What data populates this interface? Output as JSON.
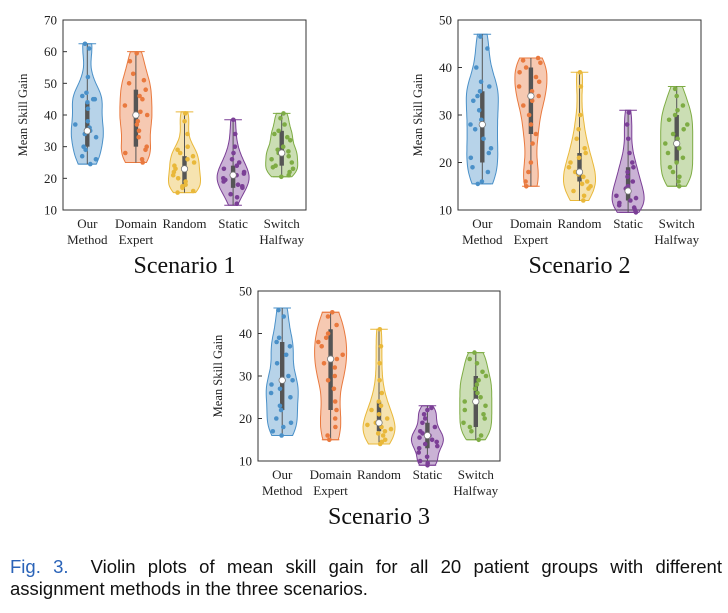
{
  "caption": {
    "label": "Fig. 3.",
    "text": "Violin plots of mean skill gain for all 20 patient groups with different assignment methods in the three scenarios."
  },
  "colors": {
    "Our Method": "#4a90c8",
    "Domain Expert": "#e9793e",
    "Random": "#e9b83a",
    "Static": "#7b3f96",
    "Switch Halfway": "#7eac44"
  },
  "chart_data": [
    {
      "type": "violin",
      "title": "Scenario 1",
      "ylabel": "Mean Skill Gain",
      "ylim": [
        10,
        70
      ],
      "yticks": [
        10,
        20,
        30,
        40,
        50,
        60,
        70
      ],
      "category_labels": [
        [
          "Our",
          "Method"
        ],
        [
          "Domain",
          "Expert"
        ],
        [
          "Random"
        ],
        [
          "Static"
        ],
        [
          "Switch",
          "Halfway"
        ]
      ],
      "series": [
        {
          "name": "Our Method",
          "min": 24.5,
          "q1": 30,
          "median": 35,
          "q3": 44,
          "max": 62.5,
          "points": [
            62.5,
            61,
            52,
            47,
            46,
            45,
            45,
            44,
            42,
            38,
            37,
            36,
            35,
            34,
            33,
            30,
            29,
            27,
            26,
            24.5
          ]
        },
        {
          "name": "Domain Expert",
          "min": 25,
          "q1": 30,
          "median": 40,
          "q3": 48,
          "max": 60,
          "points": [
            59.5,
            57,
            53,
            51,
            50,
            48,
            46,
            45,
            43,
            41,
            40,
            38,
            37,
            35,
            33,
            30,
            29,
            28,
            26,
            25
          ]
        },
        {
          "name": "Random",
          "min": 15.5,
          "q1": 18,
          "median": 23,
          "q3": 27,
          "max": 41,
          "points": [
            40.5,
            38,
            34,
            30,
            29,
            28,
            27,
            26,
            25,
            24,
            23,
            22,
            21,
            20,
            19,
            18,
            17.5,
            17,
            16,
            15.5
          ]
        },
        {
          "name": "Static",
          "min": 11.5,
          "q1": 17,
          "median": 21,
          "q3": 24,
          "max": 38.5,
          "points": [
            38.5,
            34,
            30,
            28,
            26,
            25,
            24,
            23,
            22,
            21.5,
            21,
            20,
            19.5,
            19,
            18,
            17.5,
            17,
            15,
            14,
            12
          ]
        },
        {
          "name": "Switch Halfway",
          "min": 20.5,
          "q1": 24,
          "median": 28,
          "q3": 35,
          "max": 40.5,
          "points": [
            40.5,
            39,
            37,
            35,
            34,
            33,
            32,
            30,
            29,
            28.5,
            28,
            27,
            26,
            25,
            24,
            23.5,
            23,
            22,
            21,
            20.5
          ]
        }
      ]
    },
    {
      "type": "violin",
      "title": "Scenario 2",
      "ylabel": "Mean Skill Gain",
      "ylim": [
        10,
        50
      ],
      "yticks": [
        10,
        20,
        30,
        40,
        50
      ],
      "category_labels": [
        [
          "Our",
          "Method"
        ],
        [
          "Domain",
          "Expert"
        ],
        [
          "Random"
        ],
        [
          "Static"
        ],
        [
          "Switch",
          "Halfway"
        ]
      ],
      "series": [
        {
          "name": "Our Method",
          "min": 15.5,
          "q1": 20,
          "median": 28,
          "q3": 35,
          "max": 47,
          "points": [
            46.5,
            44,
            40,
            37,
            36,
            35,
            34,
            33,
            31,
            29,
            28,
            27,
            25,
            23,
            22,
            21,
            19,
            18,
            16,
            15.5
          ]
        },
        {
          "name": "Domain Expert",
          "min": 15,
          "q1": 26,
          "median": 34,
          "q3": 40,
          "max": 42,
          "points": [
            42,
            41.5,
            41,
            40,
            39,
            38,
            37,
            36,
            35,
            34,
            33,
            32,
            30,
            28,
            26,
            24,
            20,
            18,
            16,
            15
          ]
        },
        {
          "name": "Random",
          "min": 12,
          "q1": 16,
          "median": 18,
          "q3": 22,
          "max": 39,
          "points": [
            39,
            36,
            30,
            27,
            25,
            23,
            22,
            21,
            20,
            19,
            18,
            17.5,
            17,
            16,
            15.5,
            15,
            14.5,
            14,
            13,
            12
          ]
        },
        {
          "name": "Static",
          "min": 9.5,
          "q1": 12,
          "median": 14,
          "q3": 19,
          "max": 31,
          "points": [
            30.5,
            28,
            25,
            22,
            20,
            19,
            18,
            17,
            16,
            15,
            14.5,
            14,
            13,
            12.5,
            12,
            11.5,
            11,
            10.5,
            10,
            9.5
          ]
        },
        {
          "name": "Switch Halfway",
          "min": 15,
          "q1": 20,
          "median": 24,
          "q3": 30,
          "max": 36,
          "points": [
            35.5,
            34,
            32,
            31,
            30,
            29,
            28,
            27,
            26,
            25,
            24,
            23,
            22,
            21,
            20,
            19,
            18,
            17,
            16,
            15
          ]
        }
      ]
    },
    {
      "type": "violin",
      "title": "Scenario 3",
      "ylabel": "Mean Skill Gain",
      "ylim": [
        10,
        50
      ],
      "yticks": [
        10,
        20,
        30,
        40,
        50
      ],
      "category_labels": [
        [
          "Our",
          "Method"
        ],
        [
          "Domain",
          "Expert"
        ],
        [
          "Random"
        ],
        [
          "Static"
        ],
        [
          "Switch",
          "Halfway"
        ]
      ],
      "series": [
        {
          "name": "Our Method",
          "min": 16,
          "q1": 22,
          "median": 29,
          "q3": 38,
          "max": 46,
          "points": [
            45.5,
            44,
            39,
            38,
            37,
            35,
            33,
            30,
            29,
            28,
            27,
            26,
            25,
            23,
            22,
            20,
            19,
            18,
            17,
            16
          ]
        },
        {
          "name": "Domain Expert",
          "min": 15,
          "q1": 22,
          "median": 34,
          "q3": 41,
          "max": 45,
          "points": [
            45,
            44,
            42,
            40,
            39,
            38,
            37,
            35,
            34,
            33,
            32,
            30,
            29,
            27,
            24,
            22,
            20,
            18,
            16,
            15
          ]
        },
        {
          "name": "Random",
          "min": 14,
          "q1": 17,
          "median": 19,
          "q3": 24,
          "max": 41,
          "points": [
            41,
            37,
            33,
            29,
            26,
            24,
            23,
            22,
            21,
            20,
            19,
            18.5,
            18,
            17.5,
            17,
            16.5,
            16,
            15,
            14.5,
            14
          ]
        },
        {
          "name": "Static",
          "min": 9,
          "q1": 13,
          "median": 16,
          "q3": 19,
          "max": 23,
          "points": [
            22.5,
            22,
            21,
            20,
            19,
            18,
            17,
            16.5,
            16,
            15.5,
            15,
            14.5,
            14,
            13.5,
            13,
            12,
            11,
            10,
            9.5,
            9
          ]
        },
        {
          "name": "Switch Halfway",
          "min": 15,
          "q1": 18,
          "median": 24,
          "q3": 30,
          "max": 35.5,
          "points": [
            35.5,
            34,
            33,
            31,
            30,
            29,
            28,
            27,
            26,
            25,
            24,
            23,
            22,
            21,
            20,
            19,
            18,
            17,
            16,
            15
          ]
        }
      ]
    }
  ]
}
